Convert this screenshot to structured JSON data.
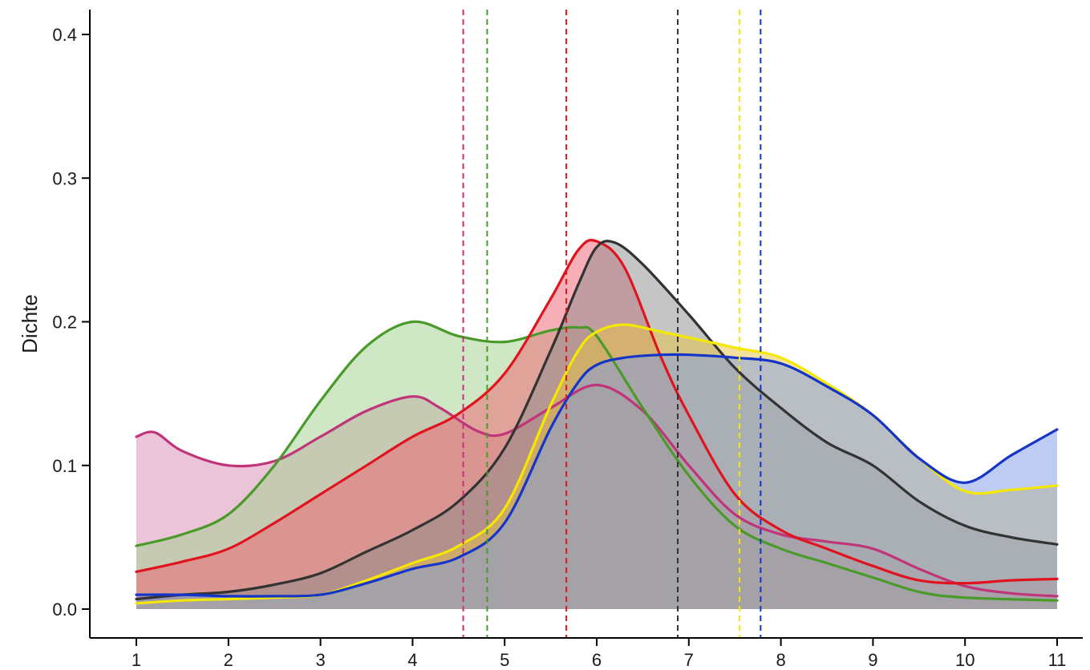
{
  "chart_data": {
    "type": "area",
    "title": "",
    "xlabel": "",
    "ylabel": "Dichte",
    "xlim": [
      1,
      11
    ],
    "ylim": [
      0,
      0.42
    ],
    "xticks": [
      1,
      2,
      3,
      4,
      5,
      6,
      7,
      8,
      9,
      10,
      11
    ],
    "xtick_labels": [
      "1",
      "2",
      "3",
      "4",
      "5",
      "6",
      "7",
      "8",
      "9",
      "10",
      "11"
    ],
    "yticks": [
      0,
      0.1,
      0.2,
      0.3,
      0.4
    ],
    "ytick_labels": [
      "0.0",
      "0.1",
      "0.2",
      "0.3",
      "0.4"
    ],
    "grid": false,
    "legend": "none",
    "series": [
      {
        "line_color": "#c0347a",
        "fill_color": "#d98ab5",
        "x": [
          1,
          1.2,
          1.5,
          2,
          2.5,
          3,
          3.5,
          4,
          4.3,
          4.7,
          5,
          5.5,
          6,
          6.5,
          7,
          7.5,
          8,
          8.5,
          9,
          9.5,
          10,
          10.5,
          11
        ],
        "y": [
          0.12,
          0.123,
          0.11,
          0.1,
          0.103,
          0.12,
          0.138,
          0.148,
          0.14,
          0.124,
          0.122,
          0.14,
          0.156,
          0.138,
          0.1,
          0.066,
          0.052,
          0.047,
          0.042,
          0.028,
          0.016,
          0.011,
          0.009
        ]
      },
      {
        "line_color": "#4a9a2a",
        "fill_color": "#9fcf8a",
        "x": [
          1,
          1.5,
          2,
          2.5,
          3,
          3.5,
          4,
          4.5,
          5,
          5.5,
          5.8,
          6,
          6.5,
          7,
          7.5,
          8,
          8.5,
          9,
          9.5,
          10,
          11
        ],
        "y": [
          0.044,
          0.052,
          0.066,
          0.1,
          0.145,
          0.183,
          0.2,
          0.19,
          0.186,
          0.194,
          0.196,
          0.19,
          0.14,
          0.093,
          0.058,
          0.042,
          0.032,
          0.022,
          0.012,
          0.008,
          0.006
        ]
      },
      {
        "line_color": "#e0141e",
        "fill_color": "#f06070",
        "x": [
          1,
          1.5,
          2,
          2.5,
          3,
          3.5,
          4,
          4.5,
          5,
          5.5,
          5.8,
          6,
          6.3,
          6.7,
          7,
          7.5,
          8,
          8.5,
          9,
          9.5,
          10,
          10.5,
          11
        ],
        "y": [
          0.026,
          0.033,
          0.042,
          0.06,
          0.08,
          0.1,
          0.12,
          0.136,
          0.164,
          0.216,
          0.25,
          0.256,
          0.238,
          0.175,
          0.135,
          0.08,
          0.055,
          0.042,
          0.03,
          0.02,
          0.018,
          0.02,
          0.021
        ]
      },
      {
        "line_color": "#333333",
        "fill_color": "#8c8c8c",
        "x": [
          1,
          1.5,
          2,
          2.5,
          3,
          3.5,
          4,
          4.5,
          5,
          5.5,
          5.8,
          6,
          6.2,
          6.5,
          7,
          7.5,
          8,
          8.5,
          9,
          9.5,
          10,
          10.5,
          11
        ],
        "y": [
          0.007,
          0.01,
          0.012,
          0.017,
          0.025,
          0.04,
          0.055,
          0.075,
          0.112,
          0.18,
          0.226,
          0.252,
          0.255,
          0.24,
          0.205,
          0.168,
          0.14,
          0.116,
          0.1,
          0.075,
          0.058,
          0.05,
          0.045
        ]
      },
      {
        "line_color": "#f5e800",
        "fill_color": "#e8c640",
        "x": [
          1,
          1.5,
          2,
          2.5,
          3,
          3.5,
          4,
          4.5,
          5,
          5.5,
          5.8,
          6,
          6.3,
          6.7,
          7,
          7.5,
          8,
          8.5,
          9,
          9.5,
          10,
          10.5,
          11
        ],
        "y": [
          0.004,
          0.006,
          0.007,
          0.008,
          0.01,
          0.02,
          0.032,
          0.044,
          0.07,
          0.142,
          0.18,
          0.193,
          0.198,
          0.193,
          0.189,
          0.182,
          0.175,
          0.157,
          0.135,
          0.105,
          0.082,
          0.083,
          0.086
        ]
      },
      {
        "line_color": "#1535c8",
        "fill_color": "#7e9ae8",
        "x": [
          1,
          1.5,
          2,
          2.5,
          3,
          3.5,
          4,
          4.5,
          5,
          5.5,
          5.8,
          6,
          6.3,
          6.7,
          7,
          7.5,
          8,
          8.5,
          9,
          9.5,
          10,
          10.5,
          11
        ],
        "y": [
          0.01,
          0.01,
          0.009,
          0.009,
          0.01,
          0.018,
          0.028,
          0.036,
          0.06,
          0.126,
          0.158,
          0.17,
          0.175,
          0.177,
          0.177,
          0.175,
          0.171,
          0.155,
          0.135,
          0.105,
          0.088,
          0.107,
          0.125
        ]
      }
    ],
    "vlines": [
      {
        "x": 4.55,
        "color": "#c0347a"
      },
      {
        "x": 4.81,
        "color": "#4a9a2a"
      },
      {
        "x": 5.67,
        "color": "#e0141e"
      },
      {
        "x": 6.88,
        "color": "#333333"
      },
      {
        "x": 7.55,
        "color": "#f5e800"
      },
      {
        "x": 7.78,
        "color": "#1535c8"
      }
    ]
  }
}
